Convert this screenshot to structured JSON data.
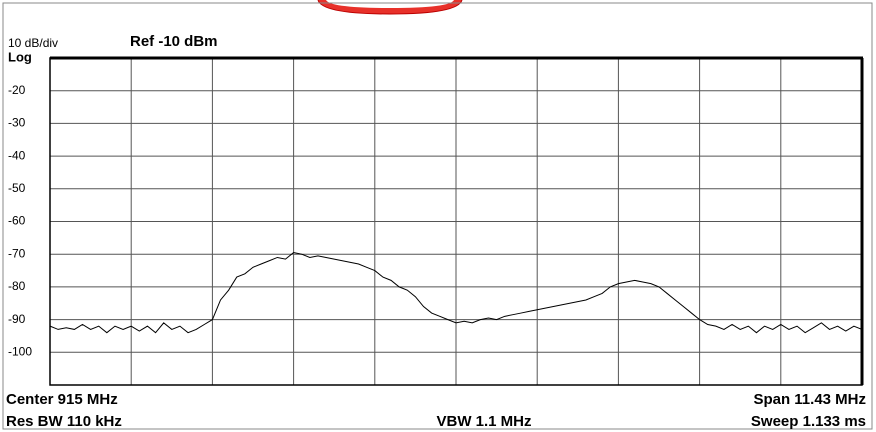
{
  "chart_data": {
    "type": "line",
    "scale_label": "10 dB/div",
    "reference": "Ref -10 dBm",
    "scale_type": "Log",
    "ylim": [
      -110,
      -10
    ],
    "yticks": [
      -20,
      -30,
      -40,
      -50,
      -60,
      -70,
      -80,
      -90,
      -100
    ],
    "grid": true,
    "color": "#000000",
    "values": [
      -92,
      -93,
      -92.5,
      -93,
      -91.5,
      -93,
      -92,
      -94,
      -92,
      -93,
      -92,
      -93.5,
      -92,
      -94,
      -91,
      -93,
      -92,
      -94,
      -93,
      -91.5,
      -90,
      -84,
      -81,
      -77,
      -76,
      -74,
      -73,
      -72,
      -71,
      -71.5,
      -69.5,
      -70,
      -71,
      -70.5,
      -71,
      -71.5,
      -72,
      -72.5,
      -73,
      -74,
      -75,
      -77,
      -78,
      -80,
      -81,
      -83,
      -86,
      -88,
      -89,
      -90,
      -91,
      -90.5,
      -91,
      -90,
      -89.5,
      -90,
      -89,
      -88.5,
      -88,
      -87.5,
      -87,
      -86.5,
      -86,
      -85.5,
      -85,
      -84.5,
      -84,
      -83,
      -82,
      -80,
      -79,
      -78.5,
      -78,
      -78.5,
      -79,
      -80,
      -82,
      -84,
      -86,
      -88,
      -90,
      -91.5,
      -92,
      -93,
      -91.5,
      -93,
      -92,
      -94,
      -92,
      -93,
      -91.5,
      -93,
      -92,
      -94,
      -92.5,
      -91,
      -93,
      -92,
      -93.5,
      -92,
      -93
    ],
    "center": "Center  915 MHz",
    "span": "Span 11.43 MHz",
    "res_bw": "Res BW  110 kHz",
    "vbw": "VBW  1.1 MHz",
    "sweep": "Sweep  1.133 ms"
  }
}
